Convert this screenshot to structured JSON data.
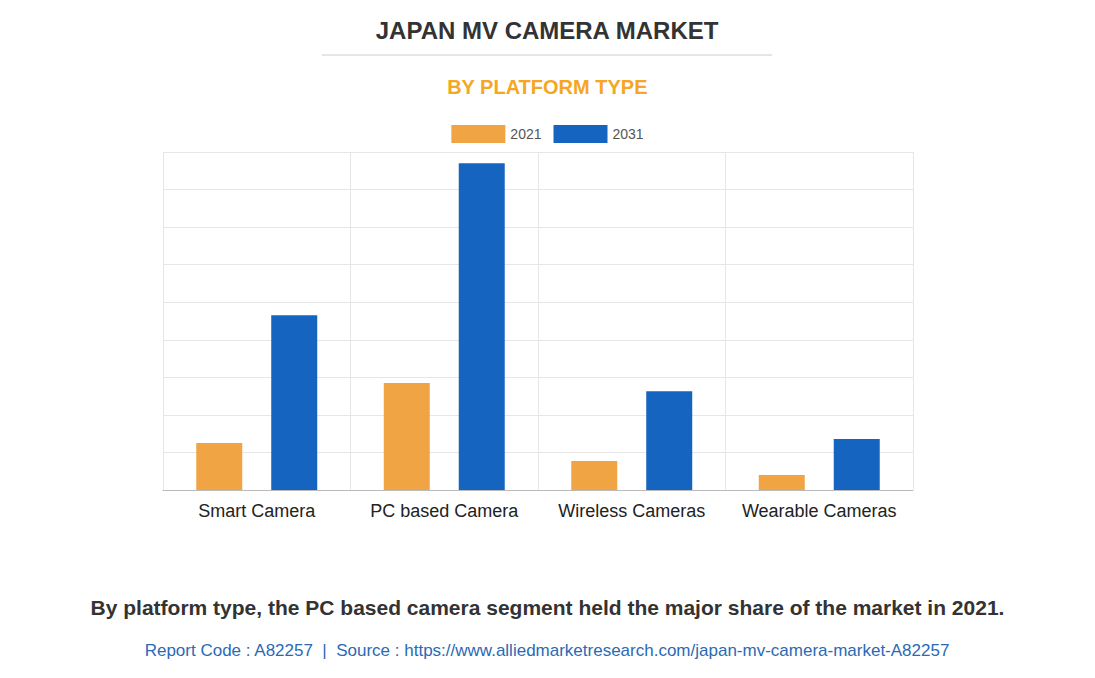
{
  "chart_data": {
    "type": "bar",
    "title": "JAPAN MV CAMERA MARKET",
    "subtitle": "BY PLATFORM TYPE",
    "categories": [
      "Smart Camera",
      "PC based Camera",
      "Wireless Cameras",
      "Wearable Cameras"
    ],
    "series": [
      {
        "name": "2021",
        "color": "#f0a444",
        "values": [
          1.25,
          2.85,
          0.77,
          0.4
        ]
      },
      {
        "name": "2031",
        "color": "#1565c0",
        "values": [
          4.65,
          8.7,
          2.63,
          1.36
        ]
      }
    ],
    "ylim": [
      0,
      9
    ],
    "yticks": [
      0,
      1,
      2,
      3,
      4,
      5,
      6,
      7,
      8,
      9
    ],
    "grid": true,
    "legend": "top",
    "tick_labels": "x",
    "annotations": [
      "By platform type, the PC based camera segment held the major share of the market in 2021.",
      "Report Code : A82257  |  Source : https://www.alliedmarketresearch.com/japan-mv-camera-market-A82257"
    ]
  }
}
